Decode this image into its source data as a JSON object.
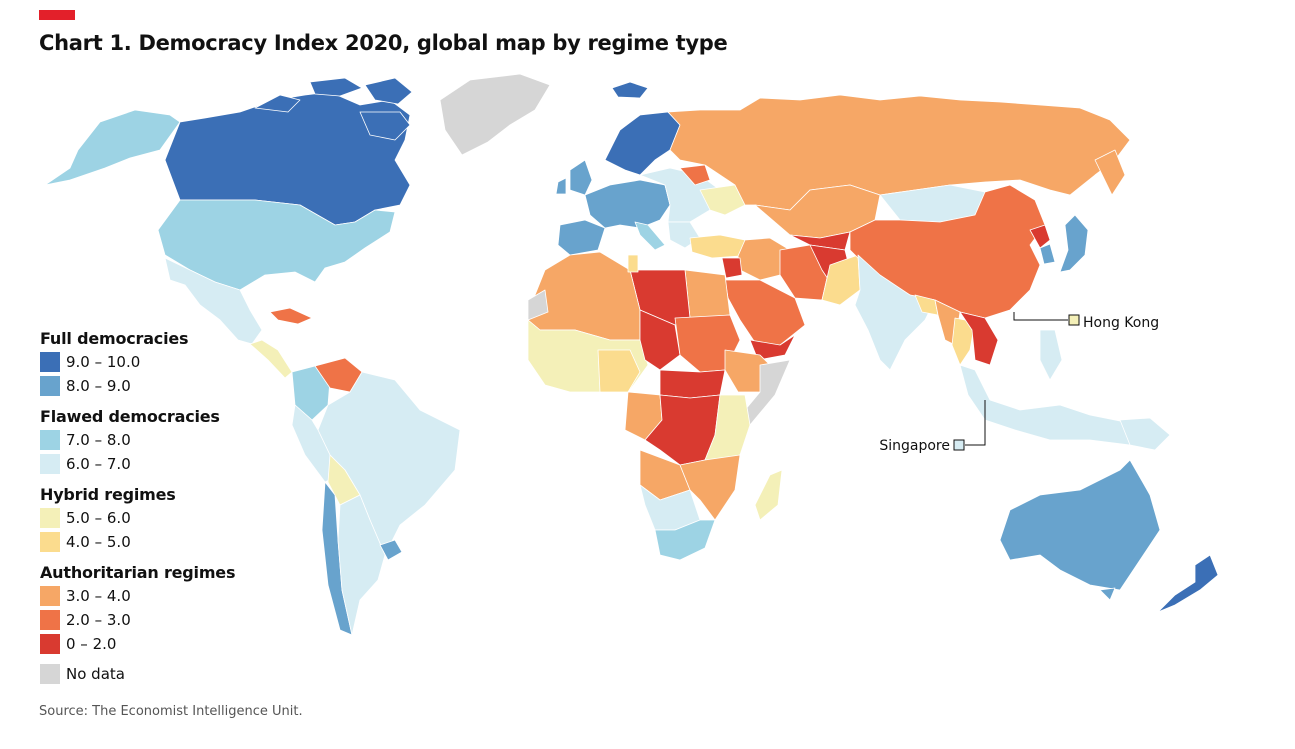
{
  "header": {
    "title": "Chart 1. Democracy Index 2020, global map by regime type",
    "accent_color": "#e3202a"
  },
  "legend": {
    "groups": [
      {
        "title": "Full democracies",
        "items": [
          {
            "label": "9.0 – 10.0",
            "color": "#3b6fb6"
          },
          {
            "label": "8.0 – 9.0",
            "color": "#68a3cd"
          }
        ]
      },
      {
        "title": "Flawed democracies",
        "items": [
          {
            "label": "7.0 – 8.0",
            "color": "#9dd3e4"
          },
          {
            "label": "6.0 – 7.0",
            "color": "#d6ecf3"
          }
        ]
      },
      {
        "title": "Hybrid regimes",
        "items": [
          {
            "label": "5.0 – 6.0",
            "color": "#f4f0b8"
          },
          {
            "label": "4.0 – 5.0",
            "color": "#fbdc8e"
          }
        ]
      },
      {
        "title": "Authoritarian regimes",
        "items": [
          {
            "label": "3.0 – 4.0",
            "color": "#f6a766"
          },
          {
            "label": "2.0 – 3.0",
            "color": "#ef7347"
          },
          {
            "label": "0 – 2.0",
            "color": "#d93a30"
          }
        ]
      }
    ],
    "no_data": {
      "label": "No data",
      "color": "#d6d6d6"
    }
  },
  "callouts": {
    "hong_kong": {
      "label": "Hong Kong",
      "color": "#f4f0b8"
    },
    "singapore": {
      "label": "Singapore",
      "color": "#d6ecf3"
    }
  },
  "source": "Source: The Economist Intelligence Unit."
}
